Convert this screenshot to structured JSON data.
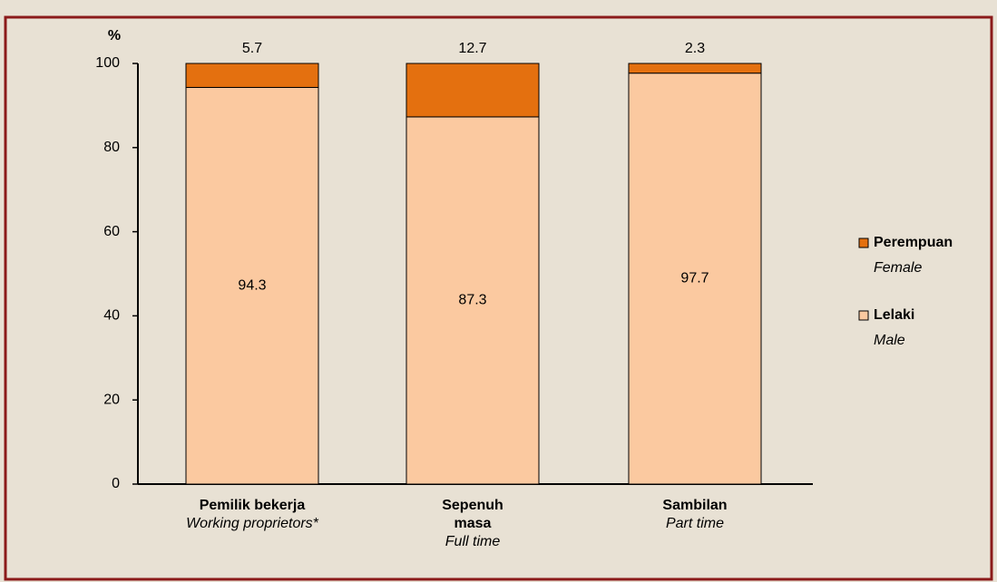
{
  "chart_data": {
    "type": "stacked_bar",
    "y_label": "%",
    "categories": [
      "Pemilik bekerja",
      "Sepenuh masa",
      "Sambilan"
    ],
    "category_translations": [
      "Working proprietors*",
      "Full time",
      "Part time"
    ],
    "series": [
      {
        "name": "Lelaki",
        "name_translation": "Male",
        "color": "#fbc9a0",
        "values": [
          94.3,
          87.3,
          97.7
        ]
      },
      {
        "name": "Perempuan",
        "name_translation": "Female",
        "color": "#e4700f",
        "values": [
          5.7,
          12.7,
          2.3
        ]
      }
    ],
    "ylim": [
      0,
      100
    ],
    "yticks": [
      0,
      20,
      40,
      60,
      80,
      100
    ],
    "grid": false,
    "legend": "right"
  }
}
